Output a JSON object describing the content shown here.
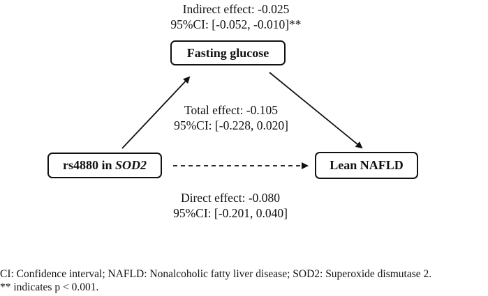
{
  "nodes": {
    "mediator": {
      "label": "Fasting glucose"
    },
    "exposure": {
      "label_prefix": "rs4880 in ",
      "label_gene": "SOD2"
    },
    "outcome": {
      "label": "Lean NAFLD"
    }
  },
  "effects": {
    "indirect": {
      "label": "Indirect effect: -0.025",
      "ci": "95%CI: [-0.052, -0.010]**"
    },
    "total": {
      "label": "Total effect: -0.105",
      "ci": "95%CI: [-0.228, 0.020]"
    },
    "direct": {
      "label": "Direct effect: -0.080",
      "ci": "95%CI: [-0.201, 0.040]"
    }
  },
  "footnotes": {
    "abbreviations": "CI: Confidence interval; NAFLD: Nonalcoholic fatty liver disease; SOD2: Superoxide dismutase 2.",
    "significance": "** indicates p < 0.001."
  }
}
